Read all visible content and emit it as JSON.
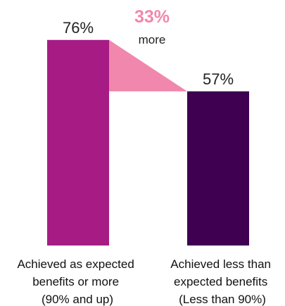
{
  "chart_data": {
    "type": "bar",
    "categories": [
      [
        "Achieved as expected",
        "benefits or more",
        "(90% and up)"
      ],
      [
        "Achieved less than",
        "expected benefits",
        "(Less than 90%)"
      ]
    ],
    "values": [
      76,
      57
    ],
    "value_labels": [
      "76%",
      "57%"
    ],
    "ylim": [
      0,
      100
    ],
    "grid": false,
    "annotation": {
      "value": "33%",
      "text": "more"
    },
    "colors": {
      "bar_1": "#a71c84",
      "bar_2": "#3f0052",
      "connector": "#f187ad",
      "annotation": "#f187ad"
    }
  }
}
